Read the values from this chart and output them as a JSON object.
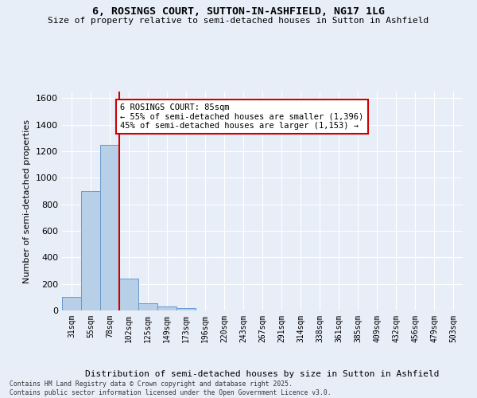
{
  "title_line1": "6, ROSINGS COURT, SUTTON-IN-ASHFIELD, NG17 1LG",
  "title_line2": "Size of property relative to semi-detached houses in Sutton in Ashfield",
  "xlabel": "Distribution of semi-detached houses by size in Sutton in Ashfield",
  "ylabel": "Number of semi-detached properties",
  "categories": [
    "31sqm",
    "55sqm",
    "78sqm",
    "102sqm",
    "125sqm",
    "149sqm",
    "173sqm",
    "196sqm",
    "220sqm",
    "243sqm",
    "267sqm",
    "291sqm",
    "314sqm",
    "338sqm",
    "361sqm",
    "385sqm",
    "409sqm",
    "432sqm",
    "456sqm",
    "479sqm",
    "503sqm"
  ],
  "values": [
    100,
    900,
    1250,
    240,
    55,
    30,
    20,
    0,
    0,
    0,
    0,
    0,
    0,
    0,
    0,
    0,
    0,
    0,
    0,
    0,
    0
  ],
  "bar_color": "#b8cfe8",
  "bar_edge_color": "#6699cc",
  "vline_x": 2.5,
  "annotation_text": "6 ROSINGS COURT: 85sqm\n← 55% of semi-detached houses are smaller (1,396)\n45% of semi-detached houses are larger (1,153) →",
  "annotation_box_color": "#ffffff",
  "annotation_box_edge": "#cc0000",
  "vline_color": "#cc0000",
  "ylim": [
    0,
    1650
  ],
  "yticks": [
    0,
    200,
    400,
    600,
    800,
    1000,
    1200,
    1400,
    1600
  ],
  "background_color": "#e8eef8",
  "grid_color": "#ffffff",
  "footnote": "Contains HM Land Registry data © Crown copyright and database right 2025.\nContains public sector information licensed under the Open Government Licence v3.0."
}
